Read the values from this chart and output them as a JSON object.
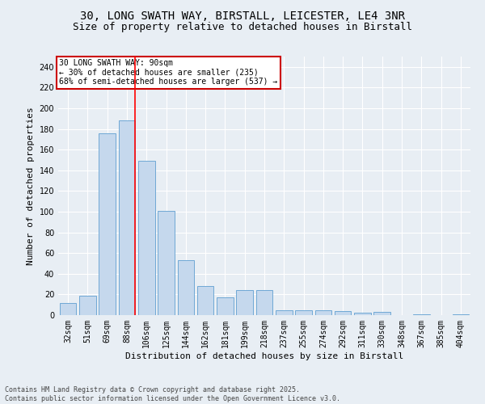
{
  "title_line1": "30, LONG SWATH WAY, BIRSTALL, LEICESTER, LE4 3NR",
  "title_line2": "Size of property relative to detached houses in Birstall",
  "xlabel": "Distribution of detached houses by size in Birstall",
  "ylabel": "Number of detached properties",
  "categories": [
    "32sqm",
    "51sqm",
    "69sqm",
    "88sqm",
    "106sqm",
    "125sqm",
    "144sqm",
    "162sqm",
    "181sqm",
    "199sqm",
    "218sqm",
    "237sqm",
    "255sqm",
    "274sqm",
    "292sqm",
    "311sqm",
    "330sqm",
    "348sqm",
    "367sqm",
    "385sqm",
    "404sqm"
  ],
  "values": [
    12,
    19,
    176,
    188,
    149,
    101,
    53,
    28,
    17,
    24,
    24,
    5,
    5,
    5,
    4,
    2,
    3,
    0,
    1,
    0,
    1
  ],
  "bar_color": "#c5d8ed",
  "bar_edge_color": "#6fa8d5",
  "background_color": "#e8eef4",
  "grid_color": "#ffffff",
  "red_line_index": 3,
  "annotation_text": "30 LONG SWATH WAY: 90sqm\n← 30% of detached houses are smaller (235)\n68% of semi-detached houses are larger (537) →",
  "annotation_box_color": "#ffffff",
  "annotation_box_edge_color": "#cc0000",
  "footer_text": "Contains HM Land Registry data © Crown copyright and database right 2025.\nContains public sector information licensed under the Open Government Licence v3.0.",
  "ylim": [
    0,
    250
  ],
  "yticks": [
    0,
    20,
    40,
    60,
    80,
    100,
    120,
    140,
    160,
    180,
    200,
    220,
    240
  ],
  "title_fontsize": 10,
  "subtitle_fontsize": 9,
  "axis_label_fontsize": 8,
  "tick_fontsize": 7,
  "footer_fontsize": 6,
  "annot_fontsize": 7
}
